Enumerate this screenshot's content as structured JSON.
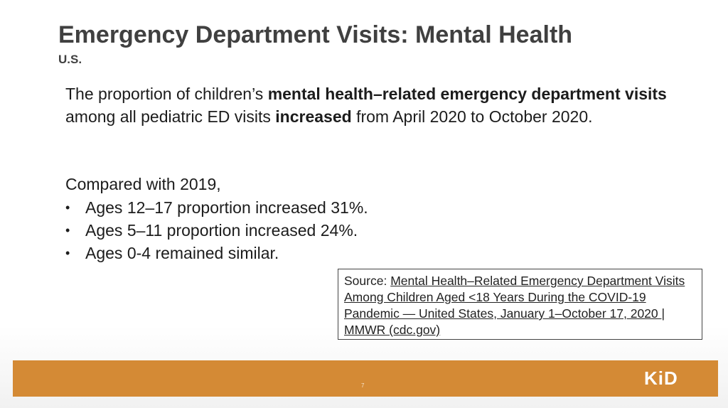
{
  "slide": {
    "title": "Emergency Department Visits: Mental Health",
    "subtitle": "U.S.",
    "paragraph": {
      "part1": "The proportion of children’s ",
      "bold1": "mental health–related emergency department visits",
      "part2": " among all pediatric ED visits ",
      "bold2": "increased",
      "part3": " from April 2020 to October 2020."
    },
    "compared_label": "Compared with 2019,",
    "bullets": [
      "Ages 12–17 proportion increased 31%.",
      "Ages 5–11 proportion increased 24%.",
      "Ages 0-4 remained similar."
    ],
    "source_label": "Source: ",
    "source_link": "Mental Health–Related Emergency Department Visits Among Children Aged <18 Years During the COVID-19 Pandemic — United States, January 1–October 17, 2020 | MMWR (cdc.gov)",
    "page_number": "7",
    "logo_text": "KiD"
  },
  "colors": {
    "footer_bar": "#d48a35",
    "title_text": "#404040"
  }
}
